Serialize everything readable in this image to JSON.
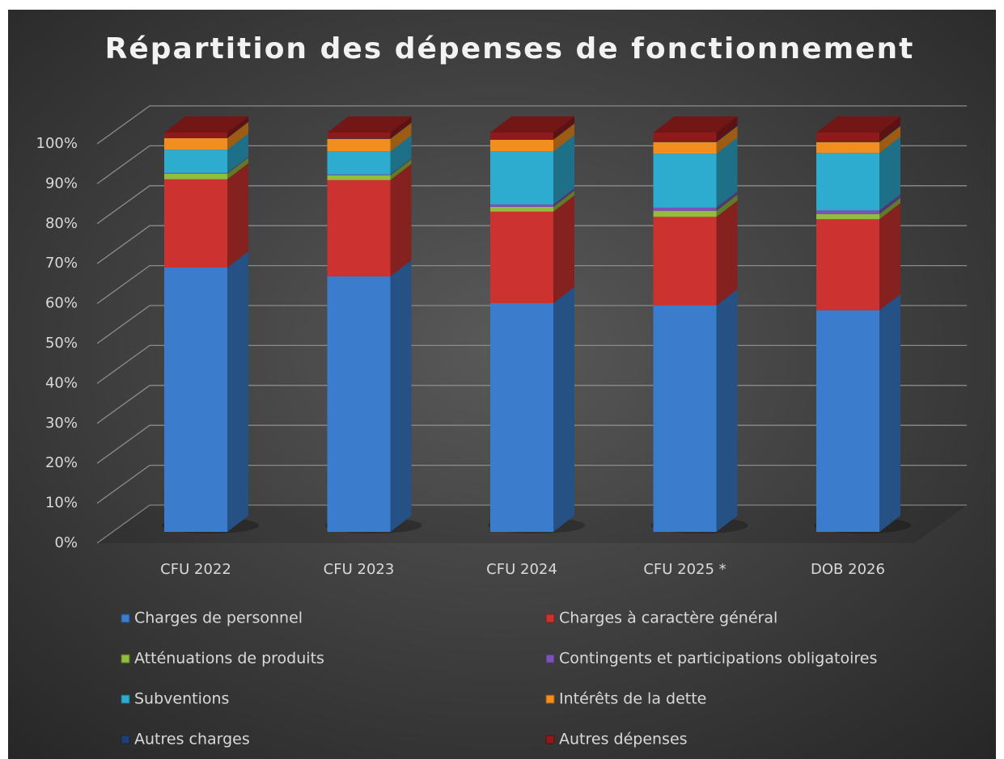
{
  "chart_data": {
    "type": "bar",
    "stacked": true,
    "title": "Répartition des dépenses de fonctionnement",
    "categories": [
      "CFU 2022",
      "CFU 2023",
      "CFU 2024",
      "CFU 2025 *",
      "DOB 2026"
    ],
    "series": [
      {
        "name": "Charges de personnel",
        "color": "#3b7ccc",
        "values": [
          66.2,
          64.0,
          57.3,
          56.7,
          55.5
        ]
      },
      {
        "name": "Charges à caractère général",
        "color": "#cc3330",
        "values": [
          22.1,
          24.1,
          22.9,
          22.2,
          22.8
        ]
      },
      {
        "name": "Atténuations de produits",
        "color": "#92bd3c",
        "values": [
          1.4,
          1.2,
          1.2,
          1.5,
          1.3
        ]
      },
      {
        "name": "Contingents et participations obligatoires",
        "color": "#7d52b5",
        "values": [
          0.2,
          0.2,
          0.6,
          0.8,
          0.9
        ]
      },
      {
        "name": "Subventions",
        "color": "#2daccf",
        "values": [
          5.8,
          5.8,
          13.3,
          13.5,
          14.4
        ]
      },
      {
        "name": "Intérêts de la dette",
        "color": "#f28d1f",
        "values": [
          2.9,
          3.1,
          2.9,
          2.9,
          2.7
        ]
      },
      {
        "name": "Autres charges",
        "color": "#203f73",
        "values": [
          0.1,
          0.1,
          0.1,
          0.2,
          0.2
        ]
      },
      {
        "name": "Autres dépenses",
        "color": "#8e1b1b",
        "values": [
          1.3,
          1.5,
          1.7,
          2.2,
          2.2
        ]
      }
    ],
    "ylim": [
      0,
      100
    ],
    "yticks": [
      {
        "value": 0,
        "label": "0%"
      },
      {
        "value": 10,
        "label": "10%"
      },
      {
        "value": 20,
        "label": "20%"
      },
      {
        "value": 30,
        "label": "30%"
      },
      {
        "value": 40,
        "label": "40%"
      },
      {
        "value": 50,
        "label": "50%"
      },
      {
        "value": 60,
        "label": "60%"
      },
      {
        "value": 70,
        "label": "70%"
      },
      {
        "value": 80,
        "label": "80%"
      },
      {
        "value": 90,
        "label": "90%"
      },
      {
        "value": 100,
        "label": "100%"
      }
    ],
    "grid": true,
    "legend": "bottom"
  }
}
